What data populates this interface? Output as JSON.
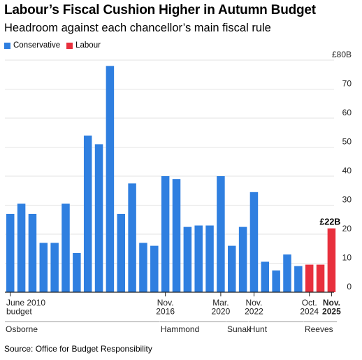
{
  "title": "Labour’s Fiscal Cushion Higher in Autumn Budget",
  "subtitle": "Headroom against each chancellor’s main fiscal rule",
  "legend": [
    {
      "label": "Conservative",
      "color": "#2F7FE0"
    },
    {
      "label": "Labour",
      "color": "#E8303D"
    }
  ],
  "source": "Source: Office for Budget Responsibility",
  "chart_data": {
    "type": "bar",
    "ylim": [
      0,
      80
    ],
    "y_ticks": [
      "£80B",
      "70",
      "60",
      "50",
      "40",
      "30",
      "20",
      "10",
      "0"
    ],
    "grid": true,
    "legend_position": "top-left",
    "series": [
      {
        "name": "Conservative",
        "color": "#2F7FE0",
        "values": [
          27,
          30.5,
          27,
          17,
          17,
          30.5,
          13.5,
          54,
          51,
          78,
          27,
          37.5,
          17,
          16,
          40,
          39,
          22.5,
          23,
          23,
          40,
          16,
          22.5,
          34.5,
          10.5,
          7.5,
          13,
          9
        ]
      },
      {
        "name": "Labour",
        "color": "#E8303D",
        "values": [
          9.5,
          9.5,
          22
        ]
      }
    ],
    "annotations": [
      {
        "text": "£22B",
        "bar_index": 29
      }
    ],
    "x_labels": [
      {
        "lines": [
          "June 2010",
          "budget"
        ],
        "bar_index": 0,
        "align": "start",
        "bold": false
      },
      {
        "lines": [
          "Nov.",
          "2016"
        ],
        "bar_index": 14,
        "align": "middle",
        "bold": false
      },
      {
        "lines": [
          "Mar.",
          "2020"
        ],
        "bar_index": 19,
        "align": "middle",
        "bold": false
      },
      {
        "lines": [
          "Nov.",
          "2022"
        ],
        "bar_index": 22,
        "align": "middle",
        "bold": false
      },
      {
        "lines": [
          "Oct.",
          "2024"
        ],
        "bar_index": 27,
        "align": "middle",
        "bold": false
      },
      {
        "lines": [
          "Nov.",
          "2025"
        ],
        "bar_index": 29,
        "align": "middle",
        "bold": true
      }
    ],
    "chancellors": [
      {
        "name": "Osborne",
        "from": 0,
        "to": 13
      },
      {
        "name": "Hammond",
        "from": 14,
        "to": 19
      },
      {
        "name": "Sunak",
        "from": 20,
        "to": 21
      },
      {
        "name": "Hunt",
        "from": 22,
        "to": 26
      },
      {
        "name": "Reeves",
        "from": 27,
        "to": 29
      }
    ]
  }
}
